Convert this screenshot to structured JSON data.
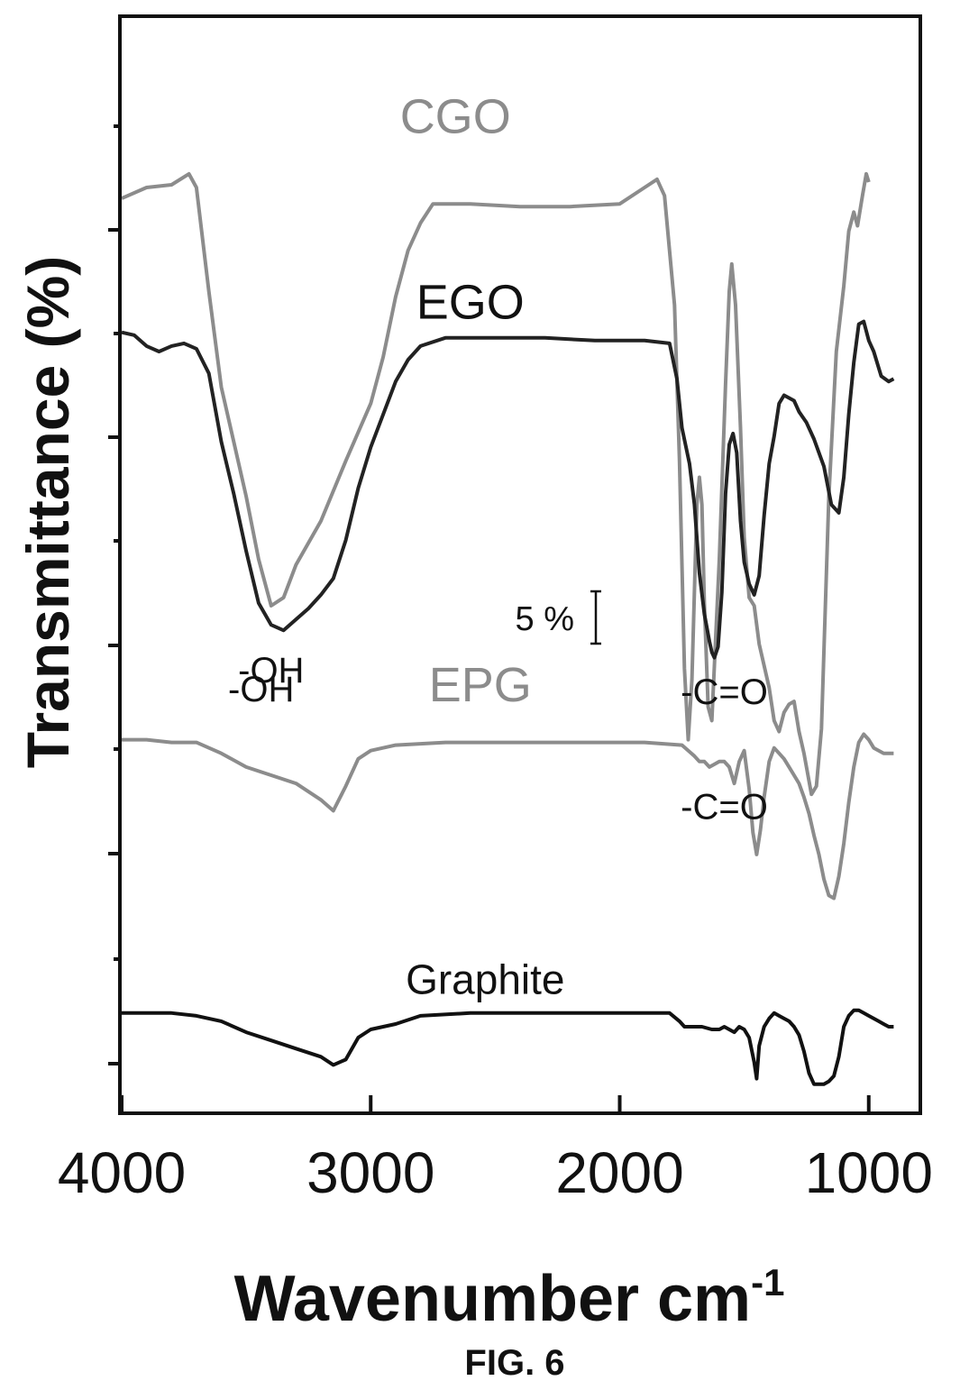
{
  "figure_label": "FIG. 6",
  "chart_data": {
    "type": "line",
    "xlabel": "Wavenumber cm",
    "xlabel_superscript": "-1",
    "ylabel": "Transmittance (%)",
    "xlim": [
      4000,
      800
    ],
    "x_reversed": true,
    "y_tick_labels_shown": false,
    "x_ticks": [
      4000,
      3000,
      2000,
      1000
    ],
    "x_tick_labels": [
      "4000",
      "3000",
      "2000",
      "1000"
    ],
    "grid": false,
    "y_axis_unit": "offset transmittance (%), stacked",
    "scale_bar_label": "5 %",
    "scale_bar_value": 5,
    "series": [
      {
        "name": "CGO",
        "color": "#8c8c8c",
        "points": [
          [
            4000,
            88.4
          ],
          [
            3900,
            88.8
          ],
          [
            3800,
            88.9
          ],
          [
            3730,
            89.3
          ],
          [
            3700,
            88.8
          ],
          [
            3650,
            85.0
          ],
          [
            3600,
            81.5
          ],
          [
            3550,
            79.5
          ],
          [
            3500,
            77.5
          ],
          [
            3450,
            75.2
          ],
          [
            3400,
            73.5
          ],
          [
            3350,
            73.8
          ],
          [
            3300,
            75.0
          ],
          [
            3200,
            76.6
          ],
          [
            3100,
            78.8
          ],
          [
            3000,
            80.9
          ],
          [
            2950,
            82.6
          ],
          [
            2900,
            84.8
          ],
          [
            2850,
            86.5
          ],
          [
            2800,
            87.5
          ],
          [
            2750,
            88.2
          ],
          [
            2600,
            88.2
          ],
          [
            2400,
            88.1
          ],
          [
            2200,
            88.1
          ],
          [
            2000,
            88.2
          ],
          [
            1900,
            88.8
          ],
          [
            1850,
            89.1
          ],
          [
            1820,
            88.5
          ],
          [
            1780,
            84.5
          ],
          [
            1760,
            78.8
          ],
          [
            1740,
            71.2
          ],
          [
            1725,
            68.6
          ],
          [
            1710,
            70.8
          ],
          [
            1690,
            77.2
          ],
          [
            1680,
            78.2
          ],
          [
            1670,
            77.2
          ],
          [
            1660,
            73.6
          ],
          [
            1645,
            69.8
          ],
          [
            1630,
            69.3
          ],
          [
            1600,
            75.2
          ],
          [
            1575,
            81.6
          ],
          [
            1560,
            85.0
          ],
          [
            1550,
            86.0
          ],
          [
            1535,
            84.5
          ],
          [
            1515,
            80.0
          ],
          [
            1500,
            76.0
          ],
          [
            1480,
            73.8
          ],
          [
            1460,
            73.5
          ],
          [
            1440,
            72.1
          ],
          [
            1400,
            70.5
          ],
          [
            1380,
            69.3
          ],
          [
            1360,
            68.9
          ],
          [
            1340,
            69.6
          ],
          [
            1320,
            69.9
          ],
          [
            1300,
            70.0
          ],
          [
            1280,
            68.9
          ],
          [
            1260,
            68.1
          ],
          [
            1230,
            66.6
          ],
          [
            1210,
            66.9
          ],
          [
            1190,
            69.0
          ],
          [
            1160,
            77.5
          ],
          [
            1130,
            82.8
          ],
          [
            1100,
            85.2
          ],
          [
            1080,
            87.2
          ],
          [
            1060,
            87.9
          ],
          [
            1045,
            87.4
          ],
          [
            1025,
            88.5
          ],
          [
            1010,
            89.3
          ],
          [
            1000,
            89.0
          ]
        ]
      },
      {
        "name": "EGO",
        "color": "#222222",
        "points": [
          [
            4000,
            83.5
          ],
          [
            3950,
            83.4
          ],
          [
            3900,
            83.0
          ],
          [
            3850,
            82.8
          ],
          [
            3800,
            83.0
          ],
          [
            3750,
            83.1
          ],
          [
            3700,
            82.9
          ],
          [
            3650,
            82.0
          ],
          [
            3600,
            79.5
          ],
          [
            3550,
            77.6
          ],
          [
            3500,
            75.5
          ],
          [
            3450,
            73.6
          ],
          [
            3400,
            72.8
          ],
          [
            3350,
            72.6
          ],
          [
            3300,
            73.0
          ],
          [
            3250,
            73.4
          ],
          [
            3200,
            73.9
          ],
          [
            3150,
            74.5
          ],
          [
            3100,
            75.9
          ],
          [
            3050,
            77.8
          ],
          [
            3000,
            79.3
          ],
          [
            2950,
            80.5
          ],
          [
            2900,
            81.7
          ],
          [
            2850,
            82.5
          ],
          [
            2800,
            83.0
          ],
          [
            2700,
            83.3
          ],
          [
            2500,
            83.3
          ],
          [
            2300,
            83.3
          ],
          [
            2100,
            83.2
          ],
          [
            1900,
            83.2
          ],
          [
            1800,
            83.1
          ],
          [
            1770,
            81.8
          ],
          [
            1750,
            80.0
          ],
          [
            1720,
            78.7
          ],
          [
            1700,
            77.2
          ],
          [
            1680,
            74.7
          ],
          [
            1660,
            73.2
          ],
          [
            1640,
            72.2
          ],
          [
            1630,
            71.8
          ],
          [
            1620,
            71.6
          ],
          [
            1605,
            72.0
          ],
          [
            1590,
            74.0
          ],
          [
            1575,
            77.6
          ],
          [
            1560,
            79.4
          ],
          [
            1545,
            79.8
          ],
          [
            1530,
            79.1
          ],
          [
            1515,
            76.6
          ],
          [
            1500,
            75.1
          ],
          [
            1480,
            74.3
          ],
          [
            1460,
            73.9
          ],
          [
            1440,
            74.6
          ],
          [
            1420,
            76.8
          ],
          [
            1400,
            78.7
          ],
          [
            1380,
            79.7
          ],
          [
            1360,
            80.9
          ],
          [
            1340,
            81.2
          ],
          [
            1320,
            81.1
          ],
          [
            1300,
            81.0
          ],
          [
            1280,
            80.6
          ],
          [
            1250,
            80.2
          ],
          [
            1220,
            79.6
          ],
          [
            1200,
            79.1
          ],
          [
            1180,
            78.6
          ],
          [
            1150,
            77.2
          ],
          [
            1120,
            76.9
          ],
          [
            1100,
            78.2
          ],
          [
            1080,
            80.5
          ],
          [
            1060,
            82.4
          ],
          [
            1040,
            83.8
          ],
          [
            1020,
            83.9
          ],
          [
            1000,
            83.2
          ],
          [
            980,
            82.8
          ],
          [
            950,
            81.9
          ],
          [
            920,
            81.7
          ],
          [
            900,
            81.8
          ]
        ]
      },
      {
        "name": "EPG",
        "color": "#8c8c8c",
        "points": [
          [
            4000,
            68.6
          ],
          [
            3900,
            68.6
          ],
          [
            3800,
            68.5
          ],
          [
            3700,
            68.5
          ],
          [
            3600,
            68.1
          ],
          [
            3500,
            67.6
          ],
          [
            3400,
            67.3
          ],
          [
            3300,
            67.0
          ],
          [
            3200,
            66.4
          ],
          [
            3150,
            66.0
          ],
          [
            3100,
            66.9
          ],
          [
            3050,
            67.9
          ],
          [
            3000,
            68.2
          ],
          [
            2900,
            68.4
          ],
          [
            2700,
            68.5
          ],
          [
            2500,
            68.5
          ],
          [
            2300,
            68.5
          ],
          [
            2100,
            68.5
          ],
          [
            1900,
            68.5
          ],
          [
            1750,
            68.4
          ],
          [
            1700,
            68.0
          ],
          [
            1680,
            67.8
          ],
          [
            1660,
            67.8
          ],
          [
            1640,
            67.6
          ],
          [
            1620,
            67.7
          ],
          [
            1600,
            67.8
          ],
          [
            1580,
            67.8
          ],
          [
            1560,
            67.6
          ],
          [
            1540,
            67.0
          ],
          [
            1520,
            67.8
          ],
          [
            1500,
            68.2
          ],
          [
            1480,
            66.8
          ],
          [
            1465,
            65.2
          ],
          [
            1450,
            64.4
          ],
          [
            1435,
            65.3
          ],
          [
            1420,
            66.5
          ],
          [
            1400,
            67.8
          ],
          [
            1380,
            68.3
          ],
          [
            1360,
            68.1
          ],
          [
            1340,
            67.9
          ],
          [
            1320,
            67.6
          ],
          [
            1300,
            67.3
          ],
          [
            1280,
            67.0
          ],
          [
            1260,
            66.5
          ],
          [
            1240,
            65.9
          ],
          [
            1220,
            65.1
          ],
          [
            1200,
            64.4
          ],
          [
            1180,
            63.5
          ],
          [
            1160,
            62.9
          ],
          [
            1140,
            62.8
          ],
          [
            1120,
            63.6
          ],
          [
            1100,
            64.8
          ],
          [
            1080,
            66.3
          ],
          [
            1060,
            67.6
          ],
          [
            1040,
            68.5
          ],
          [
            1020,
            68.8
          ],
          [
            1000,
            68.6
          ],
          [
            980,
            68.3
          ],
          [
            960,
            68.2
          ],
          [
            940,
            68.1
          ],
          [
            920,
            68.1
          ],
          [
            900,
            68.1
          ]
        ]
      },
      {
        "name": "Graphite",
        "color": "#111111",
        "points": [
          [
            4000,
            58.6
          ],
          [
            3900,
            58.6
          ],
          [
            3800,
            58.6
          ],
          [
            3700,
            58.5
          ],
          [
            3600,
            58.3
          ],
          [
            3500,
            57.9
          ],
          [
            3400,
            57.6
          ],
          [
            3300,
            57.3
          ],
          [
            3200,
            57.0
          ],
          [
            3150,
            56.7
          ],
          [
            3100,
            56.9
          ],
          [
            3050,
            57.7
          ],
          [
            3000,
            58.0
          ],
          [
            2900,
            58.2
          ],
          [
            2800,
            58.5
          ],
          [
            2600,
            58.6
          ],
          [
            2400,
            58.6
          ],
          [
            2200,
            58.6
          ],
          [
            2000,
            58.6
          ],
          [
            1800,
            58.6
          ],
          [
            1760,
            58.3
          ],
          [
            1740,
            58.1
          ],
          [
            1700,
            58.1
          ],
          [
            1670,
            58.1
          ],
          [
            1630,
            58.0
          ],
          [
            1600,
            58.0
          ],
          [
            1580,
            58.1
          ],
          [
            1540,
            57.9
          ],
          [
            1520,
            58.1
          ],
          [
            1500,
            58.0
          ],
          [
            1480,
            57.7
          ],
          [
            1460,
            56.8
          ],
          [
            1450,
            56.2
          ],
          [
            1440,
            57.4
          ],
          [
            1420,
            58.1
          ],
          [
            1400,
            58.4
          ],
          [
            1380,
            58.6
          ],
          [
            1360,
            58.5
          ],
          [
            1340,
            58.4
          ],
          [
            1320,
            58.3
          ],
          [
            1300,
            58.1
          ],
          [
            1280,
            57.8
          ],
          [
            1260,
            57.2
          ],
          [
            1240,
            56.4
          ],
          [
            1220,
            56.0
          ],
          [
            1200,
            56.0
          ],
          [
            1180,
            56.0
          ],
          [
            1160,
            56.1
          ],
          [
            1140,
            56.3
          ],
          [
            1120,
            57.0
          ],
          [
            1100,
            58.1
          ],
          [
            1080,
            58.5
          ],
          [
            1060,
            58.7
          ],
          [
            1040,
            58.7
          ],
          [
            1020,
            58.6
          ],
          [
            1000,
            58.5
          ],
          [
            980,
            58.4
          ],
          [
            960,
            58.3
          ],
          [
            940,
            58.2
          ],
          [
            920,
            58.1
          ],
          [
            900,
            58.1
          ]
        ]
      }
    ],
    "annotations": [
      {
        "text": "CGO",
        "x": 2660,
        "y": 90.8,
        "color": "#8c8c8c"
      },
      {
        "text": "-OH",
        "x": 3400,
        "y": 70.7,
        "color": "#111111"
      },
      {
        "text": "-C=O",
        "x": 1580,
        "y": 65.7,
        "color": "#111111"
      },
      {
        "text": "EGO",
        "x": 2600,
        "y": 84.0,
        "color": "#111111"
      },
      {
        "text": "-OH",
        "x": 3440,
        "y": 70.0,
        "color": "#111111"
      },
      {
        "text": "-C=O",
        "x": 1580,
        "y": 69.9,
        "color": "#111111"
      },
      {
        "text": "EPG",
        "x": 2560,
        "y": 70.0,
        "color": "#8c8c8c"
      },
      {
        "text": "Graphite",
        "x": 2540,
        "y": 59.3,
        "color": "#111111"
      }
    ]
  }
}
